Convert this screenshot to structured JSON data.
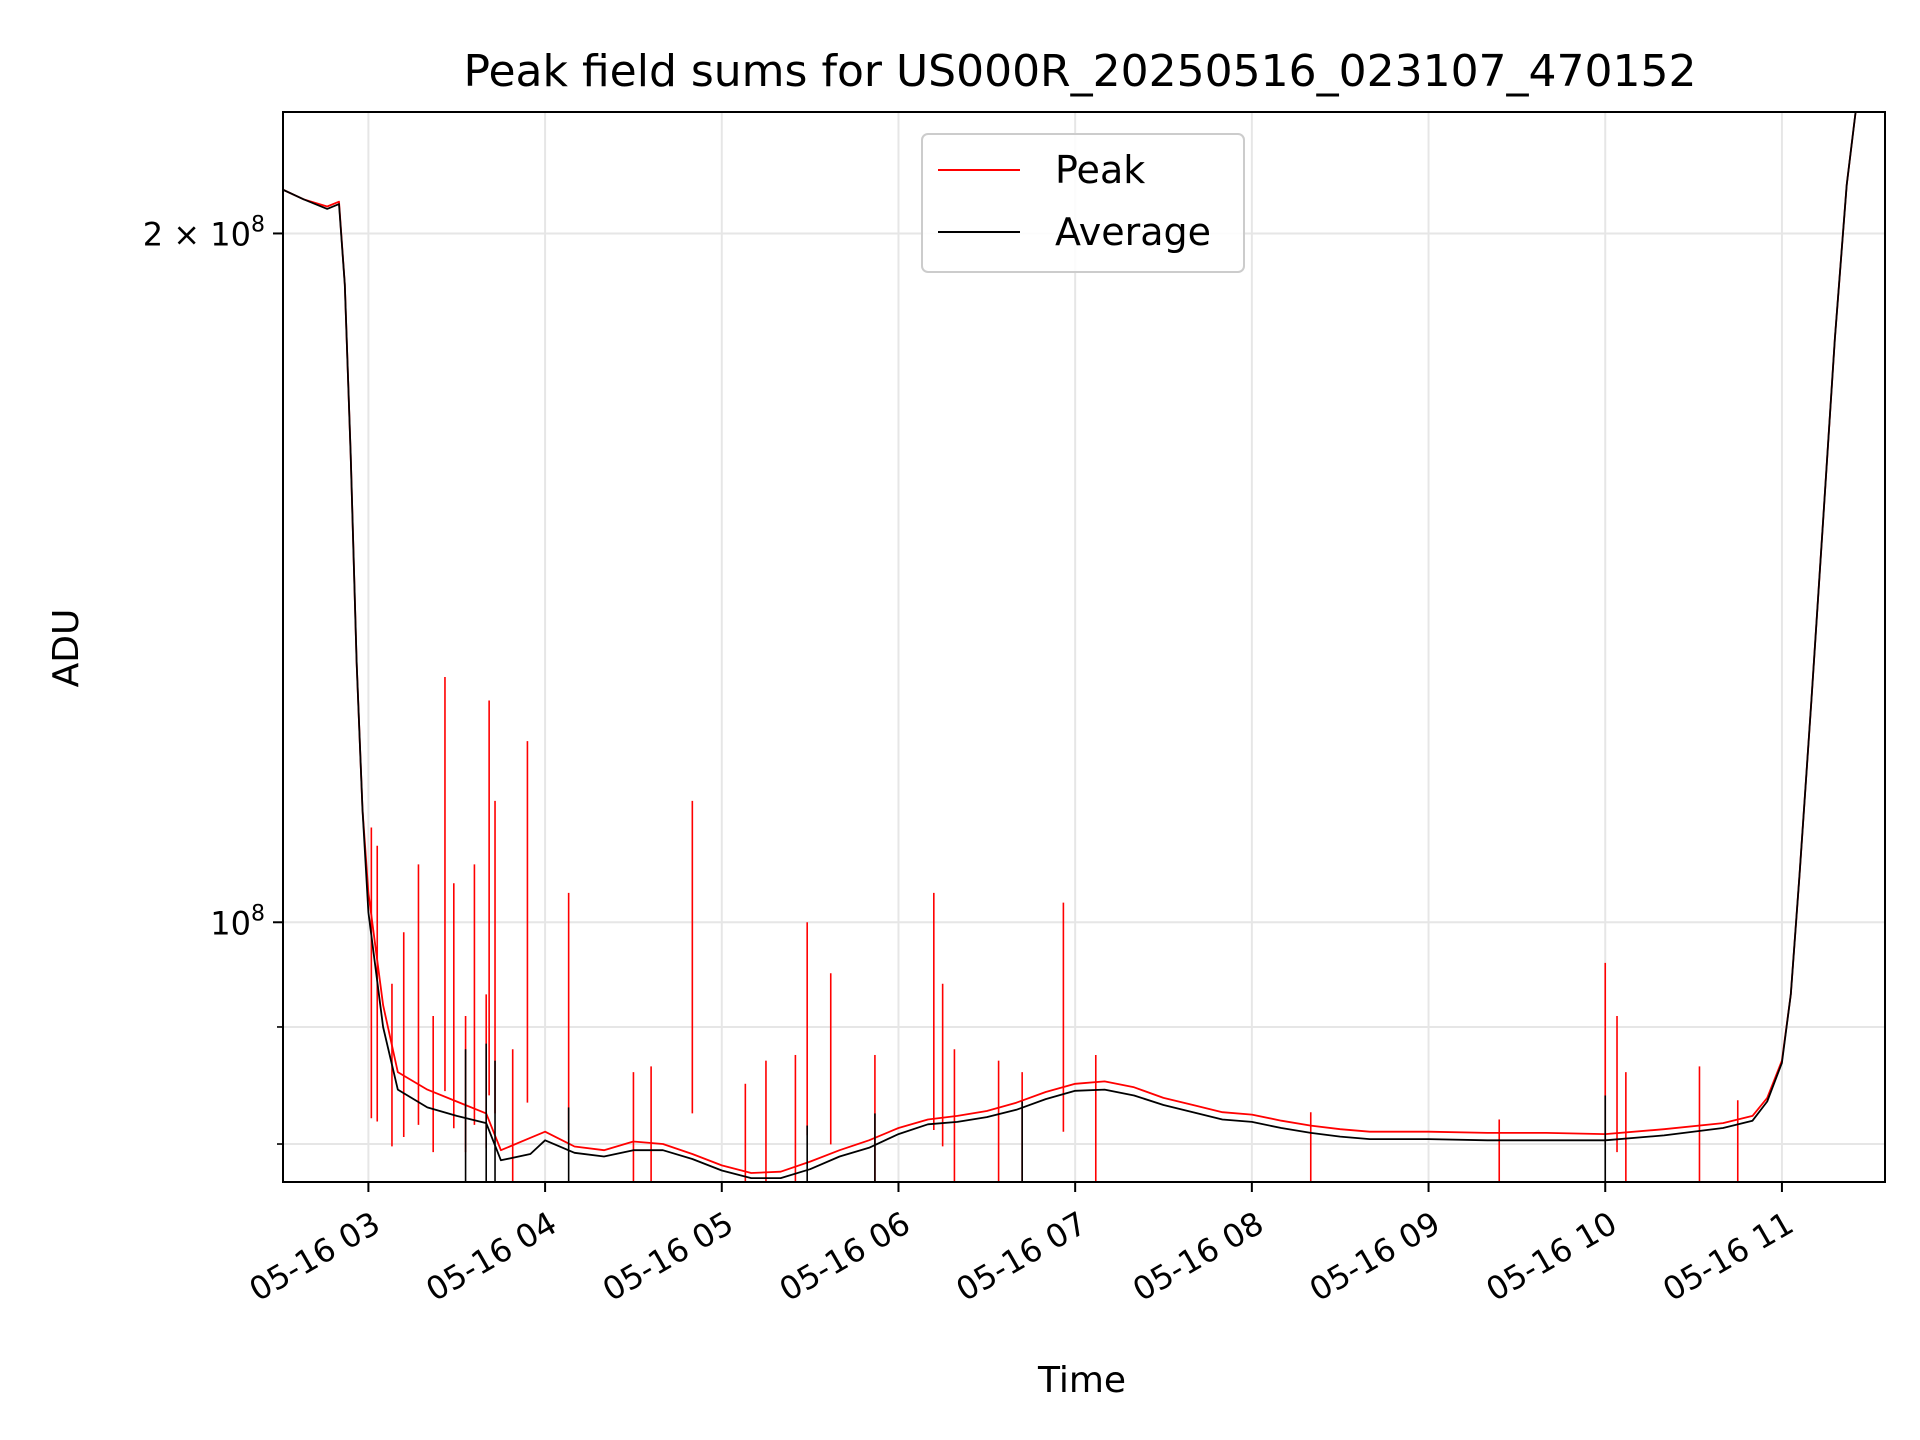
{
  "chart_data": {
    "type": "line",
    "title": "Peak field sums for US000R_20250516_023107_470152",
    "xlabel": "Time",
    "ylabel": "ADU",
    "yscale": "log",
    "xlim": [
      "2025-05-16 02:31",
      "2025-05-16 11:35"
    ],
    "ylim": [
      77000000,
      226000000
    ],
    "x_ticks": [
      "05-16 03",
      "05-16 04",
      "05-16 05",
      "05-16 06",
      "05-16 07",
      "05-16 08",
      "05-16 09",
      "05-16 10",
      "05-16 11"
    ],
    "y_ticks": [
      {
        "value": 100000000,
        "label": "10^8"
      },
      {
        "value": 200000000,
        "label": "2 × 10^8"
      }
    ],
    "y_minor_ticks": [
      80000000,
      90000000
    ],
    "grid": true,
    "legend": "top-center",
    "series": [
      {
        "name": "Peak",
        "color": "#ff0000",
        "points": [
          [
            "2025-05-16 02:31",
            209000000
          ],
          [
            "2025-05-16 02:38",
            207000000
          ],
          [
            "2025-05-16 02:46",
            205500000
          ],
          [
            "2025-05-16 02:50",
            206500000
          ],
          [
            "2025-05-16 02:52",
            190000000
          ],
          [
            "2025-05-16 02:54",
            160000000
          ],
          [
            "2025-05-16 02:56",
            130000000
          ],
          [
            "2025-05-16 02:58",
            112000000
          ],
          [
            "2025-05-16 03:00",
            103000000
          ],
          [
            "2025-05-16 03:05",
            92000000
          ],
          [
            "2025-05-16 03:10",
            86000000
          ],
          [
            "2025-05-16 03:20",
            84500000
          ],
          [
            "2025-05-16 03:30",
            83500000
          ],
          [
            "2025-05-16 03:40",
            82500000
          ],
          [
            "2025-05-16 03:45",
            79500000
          ],
          [
            "2025-05-16 03:55",
            80500000
          ],
          [
            "2025-05-16 04:00",
            81000000
          ],
          [
            "2025-05-16 04:10",
            79800000
          ],
          [
            "2025-05-16 04:20",
            79500000
          ],
          [
            "2025-05-16 04:30",
            80200000
          ],
          [
            "2025-05-16 04:40",
            80000000
          ],
          [
            "2025-05-16 04:50",
            79200000
          ],
          [
            "2025-05-16 05:00",
            78300000
          ],
          [
            "2025-05-16 05:10",
            77700000
          ],
          [
            "2025-05-16 05:20",
            77800000
          ],
          [
            "2025-05-16 05:30",
            78600000
          ],
          [
            "2025-05-16 05:40",
            79500000
          ],
          [
            "2025-05-16 05:50",
            80300000
          ],
          [
            "2025-05-16 06:00",
            81300000
          ],
          [
            "2025-05-16 06:10",
            82000000
          ],
          [
            "2025-05-16 06:20",
            82300000
          ],
          [
            "2025-05-16 06:30",
            82700000
          ],
          [
            "2025-05-16 06:40",
            83400000
          ],
          [
            "2025-05-16 06:50",
            84300000
          ],
          [
            "2025-05-16 07:00",
            85000000
          ],
          [
            "2025-05-16 07:10",
            85200000
          ],
          [
            "2025-05-16 07:20",
            84700000
          ],
          [
            "2025-05-16 07:30",
            83800000
          ],
          [
            "2025-05-16 07:40",
            83200000
          ],
          [
            "2025-05-16 07:50",
            82600000
          ],
          [
            "2025-05-16 08:00",
            82400000
          ],
          [
            "2025-05-16 08:10",
            81900000
          ],
          [
            "2025-05-16 08:20",
            81500000
          ],
          [
            "2025-05-16 08:30",
            81200000
          ],
          [
            "2025-05-16 08:40",
            81000000
          ],
          [
            "2025-05-16 09:00",
            81000000
          ],
          [
            "2025-05-16 09:20",
            80900000
          ],
          [
            "2025-05-16 09:40",
            80900000
          ],
          [
            "2025-05-16 10:00",
            80800000
          ],
          [
            "2025-05-16 10:20",
            81200000
          ],
          [
            "2025-05-16 10:40",
            81700000
          ],
          [
            "2025-05-16 10:50",
            82300000
          ],
          [
            "2025-05-16 10:55",
            83800000
          ],
          [
            "2025-05-16 11:00",
            87000000
          ],
          [
            "2025-05-16 11:03",
            93000000
          ],
          [
            "2025-05-16 11:06",
            105000000
          ],
          [
            "2025-05-16 11:10",
            125000000
          ],
          [
            "2025-05-16 11:14",
            150000000
          ],
          [
            "2025-05-16 11:18",
            180000000
          ],
          [
            "2025-05-16 11:22",
            210000000
          ],
          [
            "2025-05-16 11:25",
            226000000
          ],
          [
            "2025-05-16 11:35",
            226000000
          ]
        ],
        "spikes": [
          [
            "2025-05-16 03:01",
            110000000
          ],
          [
            "2025-05-16 03:03",
            108000000
          ],
          [
            "2025-05-16 03:08",
            94000000
          ],
          [
            "2025-05-16 03:12",
            99000000
          ],
          [
            "2025-05-16 03:17",
            106000000
          ],
          [
            "2025-05-16 03:22",
            91000000
          ],
          [
            "2025-05-16 03:26",
            128000000
          ],
          [
            "2025-05-16 03:29",
            104000000
          ],
          [
            "2025-05-16 03:33",
            91000000
          ],
          [
            "2025-05-16 03:36",
            106000000
          ],
          [
            "2025-05-16 03:40",
            93000000
          ],
          [
            "2025-05-16 03:41",
            125000000
          ],
          [
            "2025-05-16 03:43",
            113000000
          ],
          [
            "2025-05-16 03:49",
            88000000
          ],
          [
            "2025-05-16 03:54",
            120000000
          ],
          [
            "2025-05-16 04:08",
            103000000
          ],
          [
            "2025-05-16 04:30",
            86000000
          ],
          [
            "2025-05-16 04:36",
            86500000
          ],
          [
            "2025-05-16 04:50",
            113000000
          ],
          [
            "2025-05-16 05:08",
            85000000
          ],
          [
            "2025-05-16 05:15",
            87000000
          ],
          [
            "2025-05-16 05:25",
            87500000
          ],
          [
            "2025-05-16 05:29",
            100000000
          ],
          [
            "2025-05-16 05:37",
            95000000
          ],
          [
            "2025-05-16 05:52",
            87500000
          ],
          [
            "2025-05-16 06:12",
            103000000
          ],
          [
            "2025-05-16 06:15",
            94000000
          ],
          [
            "2025-05-16 06:19",
            88000000
          ],
          [
            "2025-05-16 06:34",
            87000000
          ],
          [
            "2025-05-16 06:42",
            86000000
          ],
          [
            "2025-05-16 06:56",
            102000000
          ],
          [
            "2025-05-16 07:07",
            87500000
          ],
          [
            "2025-05-16 08:20",
            82600000
          ],
          [
            "2025-05-16 09:24",
            82000000
          ],
          [
            "2025-05-16 10:00",
            96000000
          ],
          [
            "2025-05-16 10:04",
            91000000
          ],
          [
            "2025-05-16 10:07",
            86000000
          ],
          [
            "2025-05-16 10:32",
            86500000
          ],
          [
            "2025-05-16 10:45",
            83600000
          ]
        ]
      },
      {
        "name": "Average",
        "color": "#000000",
        "points": [
          [
            "2025-05-16 02:31",
            209000000
          ],
          [
            "2025-05-16 02:38",
            207000000
          ],
          [
            "2025-05-16 02:46",
            205000000
          ],
          [
            "2025-05-16 02:50",
            206000000
          ],
          [
            "2025-05-16 02:52",
            190000000
          ],
          [
            "2025-05-16 02:54",
            160000000
          ],
          [
            "2025-05-16 02:56",
            130000000
          ],
          [
            "2025-05-16 02:58",
            112000000
          ],
          [
            "2025-05-16 03:00",
            101000000
          ],
          [
            "2025-05-16 03:05",
            90000000
          ],
          [
            "2025-05-16 03:10",
            84500000
          ],
          [
            "2025-05-16 03:20",
            83000000
          ],
          [
            "2025-05-16 03:30",
            82300000
          ],
          [
            "2025-05-16 03:40",
            81700000
          ],
          [
            "2025-05-16 03:45",
            78700000
          ],
          [
            "2025-05-16 03:55",
            79200000
          ],
          [
            "2025-05-16 04:00",
            80300000
          ],
          [
            "2025-05-16 04:10",
            79300000
          ],
          [
            "2025-05-16 04:20",
            79000000
          ],
          [
            "2025-05-16 04:30",
            79500000
          ],
          [
            "2025-05-16 04:40",
            79500000
          ],
          [
            "2025-05-16 04:50",
            78800000
          ],
          [
            "2025-05-16 05:00",
            77900000
          ],
          [
            "2025-05-16 05:10",
            77300000
          ],
          [
            "2025-05-16 05:20",
            77300000
          ],
          [
            "2025-05-16 05:30",
            78000000
          ],
          [
            "2025-05-16 05:40",
            79000000
          ],
          [
            "2025-05-16 05:50",
            79700000
          ],
          [
            "2025-05-16 06:00",
            80800000
          ],
          [
            "2025-05-16 06:10",
            81600000
          ],
          [
            "2025-05-16 06:20",
            81800000
          ],
          [
            "2025-05-16 06:30",
            82200000
          ],
          [
            "2025-05-16 06:40",
            82800000
          ],
          [
            "2025-05-16 06:50",
            83700000
          ],
          [
            "2025-05-16 07:00",
            84400000
          ],
          [
            "2025-05-16 07:10",
            84500000
          ],
          [
            "2025-05-16 07:20",
            84000000
          ],
          [
            "2025-05-16 07:30",
            83200000
          ],
          [
            "2025-05-16 07:40",
            82600000
          ],
          [
            "2025-05-16 07:50",
            82000000
          ],
          [
            "2025-05-16 08:00",
            81800000
          ],
          [
            "2025-05-16 08:10",
            81300000
          ],
          [
            "2025-05-16 08:20",
            80900000
          ],
          [
            "2025-05-16 08:30",
            80600000
          ],
          [
            "2025-05-16 08:40",
            80400000
          ],
          [
            "2025-05-16 09:00",
            80400000
          ],
          [
            "2025-05-16 09:20",
            80300000
          ],
          [
            "2025-05-16 09:40",
            80300000
          ],
          [
            "2025-05-16 10:00",
            80300000
          ],
          [
            "2025-05-16 10:20",
            80700000
          ],
          [
            "2025-05-16 10:40",
            81300000
          ],
          [
            "2025-05-16 10:50",
            81900000
          ],
          [
            "2025-05-16 10:55",
            83500000
          ],
          [
            "2025-05-16 11:00",
            86800000
          ],
          [
            "2025-05-16 11:03",
            93000000
          ],
          [
            "2025-05-16 11:06",
            105000000
          ],
          [
            "2025-05-16 11:10",
            125000000
          ],
          [
            "2025-05-16 11:14",
            150000000
          ],
          [
            "2025-05-16 11:18",
            180000000
          ],
          [
            "2025-05-16 11:22",
            210000000
          ],
          [
            "2025-05-16 11:25",
            226000000
          ],
          [
            "2025-05-16 11:35",
            226000000
          ]
        ],
        "spikes": [
          [
            "2025-05-16 03:33",
            88000000
          ],
          [
            "2025-05-16 03:40",
            88500000
          ],
          [
            "2025-05-16 03:43",
            87000000
          ],
          [
            "2025-05-16 04:08",
            83000000
          ],
          [
            "2025-05-16 05:29",
            81500000
          ],
          [
            "2025-05-16 05:52",
            82500000
          ],
          [
            "2025-05-16 06:42",
            83500000
          ],
          [
            "2025-05-16 10:00",
            84000000
          ]
        ]
      }
    ]
  }
}
